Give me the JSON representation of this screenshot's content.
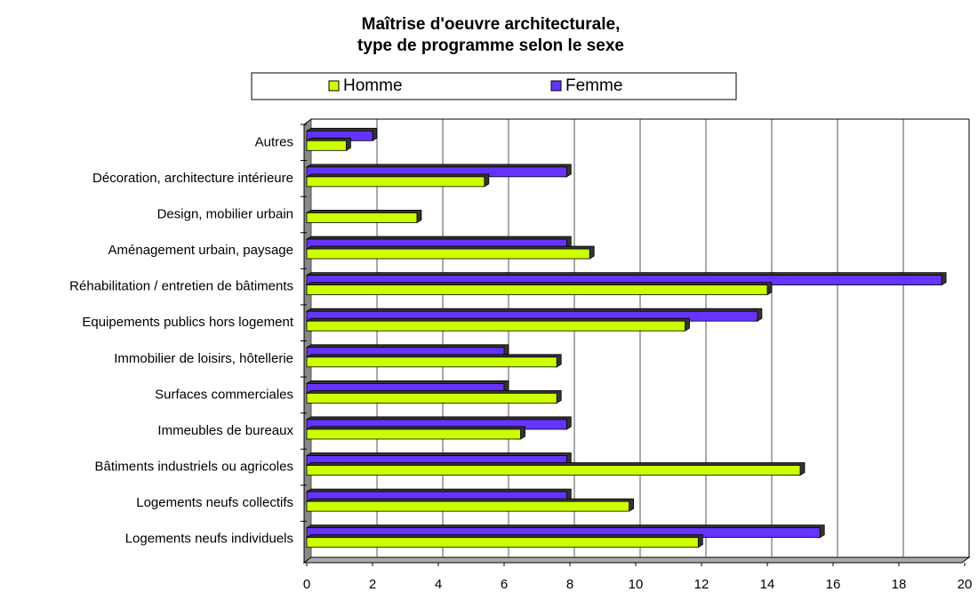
{
  "chart_data": {
    "type": "bar",
    "orientation": "horizontal",
    "title": [
      "Maîtrise d'oeuvre architecturale,",
      "type de programme selon le sexe"
    ],
    "categories": [
      "Autres",
      "Décoration, architecture intérieure",
      "Design, mobilier urbain",
      "Aménagement urbain, paysage",
      "Réhabilitation / entretien de bâtiments",
      "Equipements publics hors logement",
      "Immobilier de loisirs, hôtellerie",
      "Surfaces commerciales",
      "Immeubles de bureaux",
      "Bâtiments industriels ou agricoles",
      "Logements neufs collectifs",
      "Logements neufs individuels"
    ],
    "series": [
      {
        "name": "Homme",
        "color": "#ccff00",
        "values": [
          1.2,
          5.4,
          3.35,
          8.6,
          14.0,
          11.5,
          7.6,
          7.6,
          6.5,
          15.0,
          9.8,
          11.9
        ]
      },
      {
        "name": "Femme",
        "color": "#6633ff",
        "values": [
          2.0,
          7.9,
          0,
          7.9,
          19.3,
          13.7,
          6.0,
          6.0,
          7.9,
          7.9,
          7.9,
          15.6
        ]
      }
    ],
    "xlim": [
      0,
      20
    ],
    "xticks": [
      0,
      2,
      4,
      6,
      8,
      10,
      12,
      14,
      16,
      18,
      20
    ],
    "grid": true,
    "legend": "top"
  }
}
